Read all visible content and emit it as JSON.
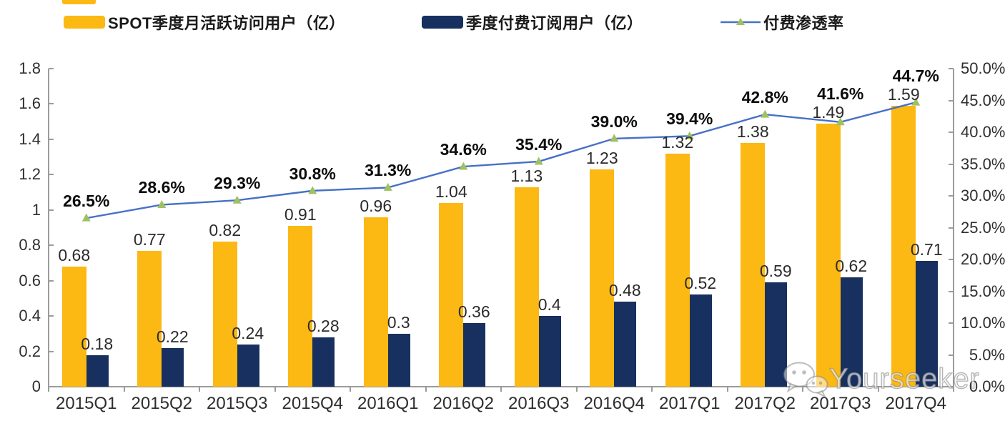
{
  "chart_data": {
    "type": "bar",
    "subtype": "combo-bar-line-dual-axis",
    "title": "",
    "categories": [
      "2015Q1",
      "2015Q2",
      "2015Q3",
      "2015Q4",
      "2016Q1",
      "2016Q2",
      "2016Q3",
      "2016Q4",
      "2017Q1",
      "2017Q2",
      "2017Q3",
      "2017Q4"
    ],
    "series": [
      {
        "name": "SPOT季度月活跃访问用户（亿）",
        "type": "bar",
        "axis": "left",
        "color": "#FCB813",
        "values": [
          0.68,
          0.77,
          0.82,
          0.91,
          0.96,
          1.04,
          1.13,
          1.23,
          1.32,
          1.38,
          1.49,
          1.59
        ],
        "labels": [
          "0.68",
          "0.77",
          "0.82",
          "0.91",
          "0.96",
          "1.04",
          "1.13",
          "1.23",
          "1.32",
          "1.38",
          "1.49",
          "1.59"
        ]
      },
      {
        "name": "季度付费订阅用户（亿）",
        "type": "bar",
        "axis": "left",
        "color": "#18305F",
        "values": [
          0.18,
          0.22,
          0.24,
          0.28,
          0.3,
          0.36,
          0.4,
          0.48,
          0.52,
          0.59,
          0.62,
          0.71
        ],
        "labels": [
          "0.18",
          "0.22",
          "0.24",
          "0.28",
          "0.3",
          "0.36",
          "0.4",
          "0.48",
          "0.52",
          "0.59",
          "0.62",
          "0.71"
        ]
      },
      {
        "name": "付费渗透率",
        "type": "line",
        "axis": "right",
        "color": "#4671C6",
        "marker": "triangle",
        "marker_color": "#A0C162",
        "values": [
          26.5,
          28.6,
          29.3,
          30.8,
          31.3,
          34.6,
          35.4,
          39.0,
          39.4,
          42.8,
          41.6,
          44.7
        ],
        "labels": [
          "26.5%",
          "28.6%",
          "29.3%",
          "30.8%",
          "31.3%",
          "34.6%",
          "35.4%",
          "39.0%",
          "39.4%",
          "42.8%",
          "41.6%",
          "44.7%"
        ]
      }
    ],
    "left_axis": {
      "min": 0,
      "max": 1.8,
      "step": 0.2,
      "tick_labels": [
        "0",
        "0.2",
        "0.4",
        "0.6",
        "0.8",
        "1",
        "1.2",
        "1.4",
        "1.6",
        "1.8"
      ]
    },
    "right_axis": {
      "min": 0,
      "max": 50,
      "step": 5,
      "tick_labels": [
        "0.0%",
        "5.0%",
        "10.0%",
        "15.0%",
        "20.0%",
        "25.0%",
        "30.0%",
        "35.0%",
        "40.0%",
        "45.0%",
        "50.0%"
      ]
    },
    "grid": false,
    "legend_position": "top",
    "axis_color": "#9B9B9B"
  },
  "watermark": {
    "text": "Yourseeker",
    "icon": "wechat-icon"
  }
}
